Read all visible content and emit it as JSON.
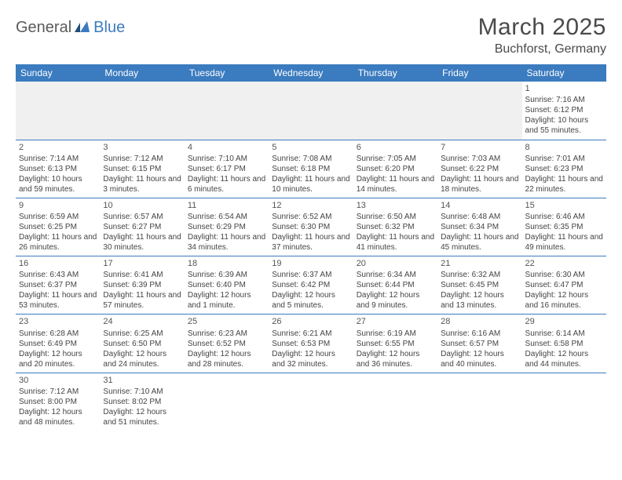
{
  "logo": {
    "part1": "General",
    "part2": "Blue"
  },
  "header": {
    "title": "March 2025",
    "location": "Buchforst, Germany"
  },
  "colors": {
    "header_bg": "#3b7bbf",
    "header_text": "#ffffff",
    "rule": "#3b7bbf",
    "blank_bg": "#f0f0f0",
    "text": "#444444"
  },
  "day_labels": [
    "Sunday",
    "Monday",
    "Tuesday",
    "Wednesday",
    "Thursday",
    "Friday",
    "Saturday"
  ],
  "weeks": [
    [
      null,
      null,
      null,
      null,
      null,
      null,
      {
        "n": "1",
        "rise": "7:16 AM",
        "set": "6:12 PM",
        "dl": "10 hours and 55 minutes."
      }
    ],
    [
      {
        "n": "2",
        "rise": "7:14 AM",
        "set": "6:13 PM",
        "dl": "10 hours and 59 minutes."
      },
      {
        "n": "3",
        "rise": "7:12 AM",
        "set": "6:15 PM",
        "dl": "11 hours and 3 minutes."
      },
      {
        "n": "4",
        "rise": "7:10 AM",
        "set": "6:17 PM",
        "dl": "11 hours and 6 minutes."
      },
      {
        "n": "5",
        "rise": "7:08 AM",
        "set": "6:18 PM",
        "dl": "11 hours and 10 minutes."
      },
      {
        "n": "6",
        "rise": "7:05 AM",
        "set": "6:20 PM",
        "dl": "11 hours and 14 minutes."
      },
      {
        "n": "7",
        "rise": "7:03 AM",
        "set": "6:22 PM",
        "dl": "11 hours and 18 minutes."
      },
      {
        "n": "8",
        "rise": "7:01 AM",
        "set": "6:23 PM",
        "dl": "11 hours and 22 minutes."
      }
    ],
    [
      {
        "n": "9",
        "rise": "6:59 AM",
        "set": "6:25 PM",
        "dl": "11 hours and 26 minutes."
      },
      {
        "n": "10",
        "rise": "6:57 AM",
        "set": "6:27 PM",
        "dl": "11 hours and 30 minutes."
      },
      {
        "n": "11",
        "rise": "6:54 AM",
        "set": "6:29 PM",
        "dl": "11 hours and 34 minutes."
      },
      {
        "n": "12",
        "rise": "6:52 AM",
        "set": "6:30 PM",
        "dl": "11 hours and 37 minutes."
      },
      {
        "n": "13",
        "rise": "6:50 AM",
        "set": "6:32 PM",
        "dl": "11 hours and 41 minutes."
      },
      {
        "n": "14",
        "rise": "6:48 AM",
        "set": "6:34 PM",
        "dl": "11 hours and 45 minutes."
      },
      {
        "n": "15",
        "rise": "6:46 AM",
        "set": "6:35 PM",
        "dl": "11 hours and 49 minutes."
      }
    ],
    [
      {
        "n": "16",
        "rise": "6:43 AM",
        "set": "6:37 PM",
        "dl": "11 hours and 53 minutes."
      },
      {
        "n": "17",
        "rise": "6:41 AM",
        "set": "6:39 PM",
        "dl": "11 hours and 57 minutes."
      },
      {
        "n": "18",
        "rise": "6:39 AM",
        "set": "6:40 PM",
        "dl": "12 hours and 1 minute."
      },
      {
        "n": "19",
        "rise": "6:37 AM",
        "set": "6:42 PM",
        "dl": "12 hours and 5 minutes."
      },
      {
        "n": "20",
        "rise": "6:34 AM",
        "set": "6:44 PM",
        "dl": "12 hours and 9 minutes."
      },
      {
        "n": "21",
        "rise": "6:32 AM",
        "set": "6:45 PM",
        "dl": "12 hours and 13 minutes."
      },
      {
        "n": "22",
        "rise": "6:30 AM",
        "set": "6:47 PM",
        "dl": "12 hours and 16 minutes."
      }
    ],
    [
      {
        "n": "23",
        "rise": "6:28 AM",
        "set": "6:49 PM",
        "dl": "12 hours and 20 minutes."
      },
      {
        "n": "24",
        "rise": "6:25 AM",
        "set": "6:50 PM",
        "dl": "12 hours and 24 minutes."
      },
      {
        "n": "25",
        "rise": "6:23 AM",
        "set": "6:52 PM",
        "dl": "12 hours and 28 minutes."
      },
      {
        "n": "26",
        "rise": "6:21 AM",
        "set": "6:53 PM",
        "dl": "12 hours and 32 minutes."
      },
      {
        "n": "27",
        "rise": "6:19 AM",
        "set": "6:55 PM",
        "dl": "12 hours and 36 minutes."
      },
      {
        "n": "28",
        "rise": "6:16 AM",
        "set": "6:57 PM",
        "dl": "12 hours and 40 minutes."
      },
      {
        "n": "29",
        "rise": "6:14 AM",
        "set": "6:58 PM",
        "dl": "12 hours and 44 minutes."
      }
    ],
    [
      {
        "n": "30",
        "rise": "7:12 AM",
        "set": "8:00 PM",
        "dl": "12 hours and 48 minutes."
      },
      {
        "n": "31",
        "rise": "7:10 AM",
        "set": "8:02 PM",
        "dl": "12 hours and 51 minutes."
      },
      null,
      null,
      null,
      null,
      null
    ]
  ]
}
